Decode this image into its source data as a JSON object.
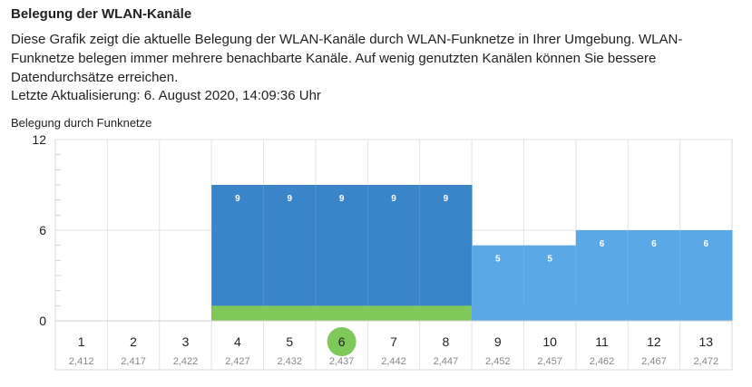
{
  "header": {
    "title": "Belegung der WLAN-Kanäle",
    "description": "Diese Grafik zeigt die aktuelle Belegung der WLAN-Kanäle durch WLAN-Funknetze in Ihrer Umgebung. WLAN-Funknetze belegen immer mehrere benachbarte Kanäle. Auf wenig genutzten Kanälen können Sie bessere Datendurchsätze erreichen.",
    "last_update": "Letzte Aktualisierung: 6. August 2020, 14:09:36 Uhr"
  },
  "chart_data": {
    "type": "bar",
    "ylabel": "Belegung durch Funknetze",
    "ylim": [
      0,
      12
    ],
    "yticks": [
      "0",
      "6",
      "12"
    ],
    "categories": [
      "1",
      "2",
      "3",
      "4",
      "5",
      "6",
      "7",
      "8",
      "9",
      "10",
      "11",
      "12",
      "13"
    ],
    "frequencies": [
      "2,412",
      "2,417",
      "2,422",
      "2,427",
      "2,432",
      "2,437",
      "2,442",
      "2,447",
      "2,452",
      "2,457",
      "2,462",
      "2,467",
      "2,472"
    ],
    "values": [
      0,
      0,
      0,
      9,
      9,
      9,
      9,
      9,
      5,
      5,
      6,
      6,
      6
    ],
    "own_network": {
      "channel": "6",
      "channels_used": [
        "4",
        "5",
        "6",
        "7",
        "8"
      ]
    },
    "grid": true,
    "colors": {
      "bar_group_dark": "#3a84c9",
      "bar_group_light": "#5aa9e6",
      "own_network": "#7fc95a",
      "selected_channel": "#7fc95a",
      "grid": "#e3e3e3"
    }
  }
}
